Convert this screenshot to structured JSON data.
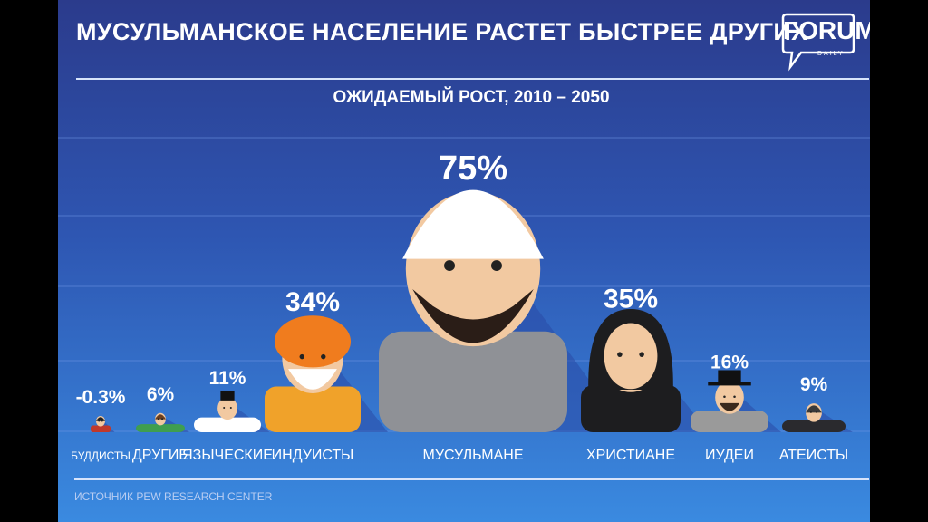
{
  "header": {
    "title": "МУСУЛЬМАНСКОЕ НАСЕЛЕНИЕ РАСТЕТ БЫСТРЕЕ ДРУГИХ",
    "subtitle": "ОЖИДАЕМЫЙ РОСТ, 2010 – 2050",
    "logo": "FORUM",
    "logo_sub": "DAILY"
  },
  "source": "ИСТОЧНИК PEW RESEARCH CENTER",
  "chart_data": {
    "type": "bar",
    "title": "МУСУЛЬМАНСКОЕ НАСЕЛЕНИЕ РАСТЕТ БЫСТРЕЕ ДРУГИХ",
    "subtitle": "ОЖИДАЕМЫЙ РОСТ, 2010 – 2050",
    "categories": [
      "БУДДИСТЫ",
      "ДРУГИЕ",
      "ЯЗЫЧЕСКИЕ",
      "ИНДУИСТЫ",
      "МУСУЛЬМАНЕ",
      "ХРИСТИАНЕ",
      "ИУДЕИ",
      "АТЕИСТЫ"
    ],
    "values": [
      -0.3,
      6,
      11,
      34,
      75,
      35,
      16,
      9
    ],
    "value_labels": [
      "-0.3%",
      "6%",
      "11%",
      "34%",
      "75%",
      "35%",
      "16%",
      "9%"
    ],
    "unit": "%",
    "grid": true,
    "colors": {
      "buddhist": "#c0392b",
      "other": "#3f9e4f",
      "pagan": "#ffffff",
      "hindu": "#f0a22a",
      "muslim": "#8f9196",
      "christian": "#1d1d1f",
      "jewish": "#9a9a9a",
      "atheist": "#2a2a2e",
      "skin": "#f2c9a1",
      "shadow": "#2a4aa6"
    }
  }
}
